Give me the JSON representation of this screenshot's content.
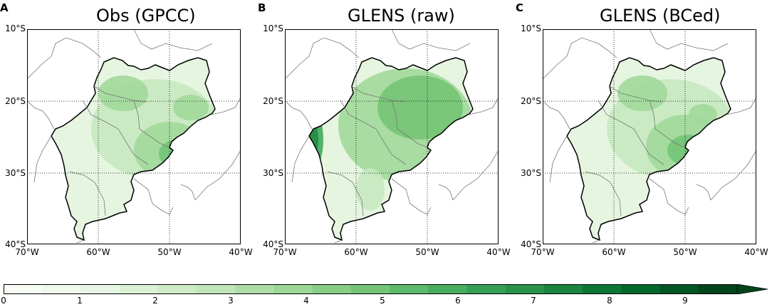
{
  "panels": [
    {
      "letter": "A",
      "title": "Obs (GPCC)",
      "variant": "obs"
    },
    {
      "letter": "B",
      "title": "GLENS (raw)",
      "variant": "raw"
    },
    {
      "letter": "C",
      "title": "GLENS (BCed)",
      "variant": "bced"
    }
  ],
  "lat_ticks": [
    "10°S",
    "20°S",
    "30°S",
    "40°S"
  ],
  "lon_ticks": [
    "70°W",
    "60°W",
    "50°W",
    "40°W"
  ],
  "colorbar": {
    "ticks": [
      "0",
      "1",
      "2",
      "3",
      "4",
      "5",
      "6",
      "7",
      "8",
      "9"
    ],
    "min": 0,
    "max": 9.6,
    "colors": [
      "#f7fcf5",
      "#e5f5e0",
      "#c7e9c0",
      "#a1d99b",
      "#74c476",
      "#41ab5d",
      "#238b45",
      "#006d2c",
      "#00441b"
    ]
  }
}
